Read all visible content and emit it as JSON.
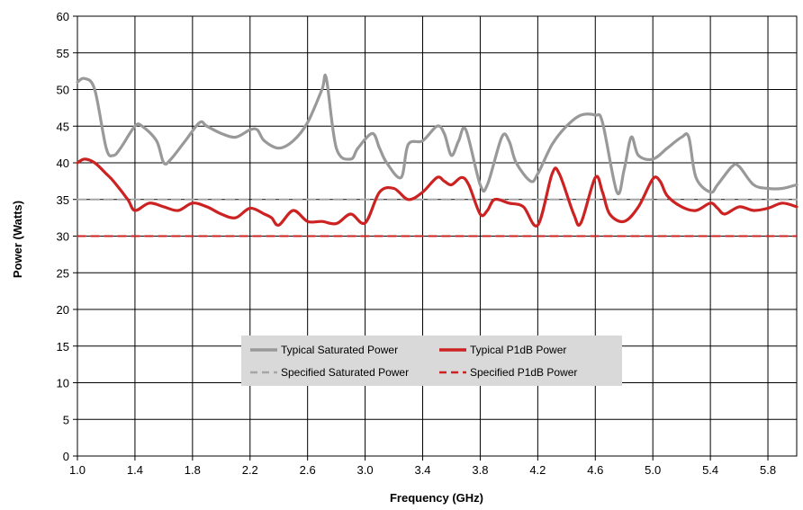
{
  "chart_data": {
    "type": "line",
    "title": "",
    "xlabel": "Frequency (GHz)",
    "ylabel": "Power (Watts)",
    "xlim": [
      1.0,
      6.0
    ],
    "ylim": [
      0,
      60
    ],
    "xticks": [
      "1.0",
      "1.4",
      "1.8",
      "2.2",
      "2.6",
      "3.0",
      "3.4",
      "3.8",
      "4.2",
      "4.6",
      "5.0",
      "5.4",
      "5.8"
    ],
    "yticks": [
      "0",
      "5",
      "10",
      "15",
      "20",
      "25",
      "30",
      "35",
      "40",
      "45",
      "50",
      "55",
      "60"
    ],
    "grid": true,
    "legend_position": "center-bottom",
    "series": [
      {
        "name": "Typical Saturated Power",
        "color": "#999999",
        "style": "solid",
        "x": [
          1.0,
          1.05,
          1.12,
          1.2,
          1.25,
          1.3,
          1.4,
          1.45,
          1.55,
          1.6,
          1.65,
          1.75,
          1.85,
          1.9,
          2.0,
          2.1,
          2.2,
          2.25,
          2.3,
          2.4,
          2.5,
          2.6,
          2.7,
          2.73,
          2.8,
          2.9,
          2.95,
          3.05,
          3.1,
          3.15,
          3.25,
          3.3,
          3.4,
          3.5,
          3.55,
          3.6,
          3.65,
          3.7,
          3.8,
          3.85,
          3.95,
          4.0,
          4.05,
          4.15,
          4.2,
          4.3,
          4.4,
          4.5,
          4.6,
          4.65,
          4.75,
          4.8,
          4.85,
          4.9,
          5.0,
          5.1,
          5.2,
          5.25,
          5.3,
          5.4,
          5.45,
          5.55,
          5.6,
          5.7,
          5.8,
          5.9,
          6.0
        ],
        "values": [
          51,
          51.5,
          50,
          42,
          41,
          42,
          45,
          45,
          43,
          40,
          40.5,
          43,
          45.5,
          45,
          44,
          43.5,
          44.5,
          44.5,
          43,
          42,
          43,
          45.5,
          50,
          51.5,
          42,
          40.5,
          42,
          44,
          42,
          40,
          38,
          42.5,
          43,
          45,
          44,
          41,
          43,
          44.5,
          37,
          37,
          43.5,
          43,
          40,
          37.5,
          38.5,
          42.5,
          45,
          46.5,
          46.5,
          45.5,
          36,
          39,
          43.5,
          41,
          40.5,
          42,
          43.5,
          43.5,
          38,
          36,
          37,
          39.5,
          39.5,
          37,
          36.5,
          36.5,
          37
        ]
      },
      {
        "name": "Typical P1dB Power",
        "color": "#cc2222",
        "style": "solid",
        "x": [
          1.0,
          1.05,
          1.12,
          1.2,
          1.25,
          1.35,
          1.4,
          1.5,
          1.6,
          1.7,
          1.8,
          1.9,
          2.0,
          2.1,
          2.2,
          2.3,
          2.35,
          2.4,
          2.5,
          2.6,
          2.7,
          2.8,
          2.9,
          3.0,
          3.1,
          3.2,
          3.3,
          3.4,
          3.5,
          3.55,
          3.6,
          3.67,
          3.72,
          3.8,
          3.85,
          3.9,
          4.0,
          4.1,
          4.2,
          4.3,
          4.35,
          4.45,
          4.5,
          4.6,
          4.65,
          4.7,
          4.8,
          4.9,
          5.0,
          5.05,
          5.1,
          5.2,
          5.3,
          5.4,
          5.45,
          5.5,
          5.6,
          5.7,
          5.8,
          5.9,
          6.0
        ],
        "values": [
          40,
          40.5,
          40,
          38.5,
          37.5,
          35,
          33.5,
          34.5,
          34,
          33.5,
          34.5,
          34,
          33,
          32.5,
          33.8,
          33,
          32.5,
          31.5,
          33.5,
          32,
          32,
          31.7,
          33,
          31.8,
          36,
          36.5,
          35,
          36,
          38,
          37.5,
          37,
          38,
          37,
          33,
          33.5,
          35,
          34.5,
          34,
          31.5,
          38.5,
          38.5,
          33,
          31.8,
          38,
          36,
          33,
          32,
          34,
          37.8,
          37.5,
          35.5,
          34,
          33.5,
          34.5,
          33.8,
          33,
          34,
          33.5,
          33.8,
          34.5,
          34
        ]
      },
      {
        "name": "Specified Saturated Power",
        "color": "#a6a6a6",
        "style": "dashed",
        "x": [
          1.0,
          6.0
        ],
        "values": [
          35,
          35
        ]
      },
      {
        "name": "Specified P1dB Power",
        "color": "#cc2222",
        "style": "dashed",
        "x": [
          1.0,
          6.0
        ],
        "values": [
          30,
          30
        ]
      }
    ]
  }
}
